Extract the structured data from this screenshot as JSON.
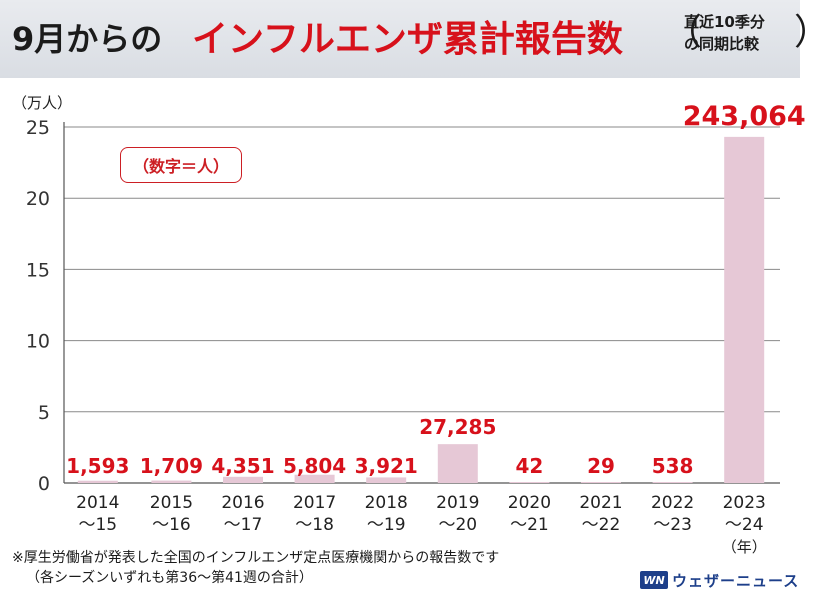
{
  "header": {
    "title_black": "9月からの",
    "title_red": "インフルエンザ累計報告数",
    "note_line1": "直近10季分",
    "note_line2": "の同期比較",
    "paren_open": "（",
    "paren_close": "）"
  },
  "unit_label": "（万人）",
  "legend_note": "（数字＝人）",
  "footer": {
    "line1": "※厚生労働省が発表した全国のインフルエンザ定点医療機関からの報告数です",
    "line2": "（各シーズンいずれも第36〜第41週の合計）"
  },
  "brand": {
    "logo": "WN",
    "name": "ウェザーニュース"
  },
  "colors": {
    "bar": "#e6c8d6",
    "label": "#d7111b",
    "grid": "#8a8a8a"
  },
  "chart_data": {
    "type": "bar",
    "title": "9月からのインフルエンザ累計報告数",
    "ylabel": "（万人）",
    "xlabel_suffix": "（年）",
    "ylim": [
      0,
      25
    ],
    "yticks": [
      0,
      5,
      10,
      15,
      20,
      25
    ],
    "categories": [
      [
        "2014",
        "〜15"
      ],
      [
        "2015",
        "〜16"
      ],
      [
        "2016",
        "〜17"
      ],
      [
        "2017",
        "〜18"
      ],
      [
        "2018",
        "〜19"
      ],
      [
        "2019",
        "〜20"
      ],
      [
        "2020",
        "〜21"
      ],
      [
        "2021",
        "〜22"
      ],
      [
        "2022",
        "〜23"
      ],
      [
        "2023",
        "〜24"
      ]
    ],
    "values": [
      1593,
      1709,
      4351,
      5804,
      3921,
      27285,
      42,
      29,
      538,
      243064
    ],
    "value_labels": [
      "1,593",
      "1,709",
      "4,351",
      "5,804",
      "3,921",
      "27,285",
      "42",
      "29",
      "538",
      "243,064"
    ],
    "value_unit_divisor": 10000
  }
}
